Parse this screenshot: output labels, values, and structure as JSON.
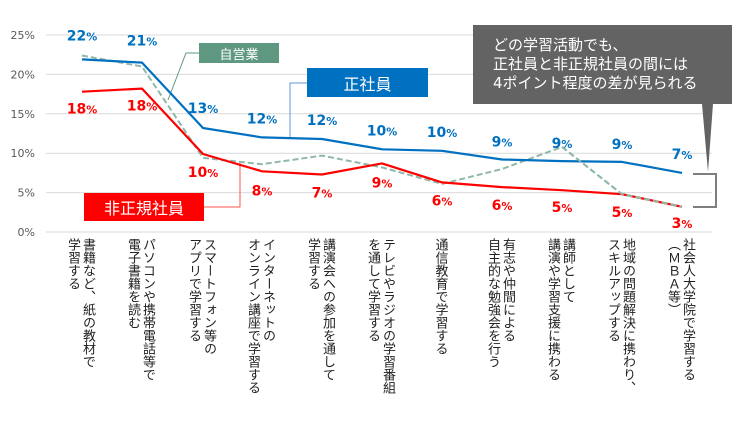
{
  "chart_data": {
    "type": "line",
    "title": "",
    "xlabel": "",
    "ylabel": "",
    "ylim": [
      0,
      25
    ],
    "yticks": [
      "0%",
      "5%",
      "10%",
      "15%",
      "20%",
      "25%"
    ],
    "ytick_values": [
      0,
      5,
      10,
      15,
      20,
      25
    ],
    "grid": true,
    "categories": [
      "書籍など、紙の教材で\n学習する",
      "パソコンや携帯電話等で\n電子書籍を読む",
      "スマートフォン等の\nアプリで学習する",
      "インターネットの\nオンライン講座で学習する",
      "講演会への参加を通して\n学習する",
      "テレビやラジオの学習番組\nを通して学習する",
      "通信教育で学習する",
      "有志や仲間による\n自主的な勉強会を行う",
      "講師として\n講演や学習支援に携わる",
      "地域の問題解決に携わり、\nスキルアップする",
      "社会人大学院で学習する\n（ＭＢＡ等）"
    ],
    "series": [
      {
        "name": "正社員",
        "color": "#0070c0",
        "dash": false,
        "values": [
          21.9,
          21.5,
          13.2,
          12.0,
          11.8,
          10.5,
          10.3,
          9.2,
          9.0,
          8.9,
          7.5
        ],
        "labels": [
          "22",
          "21",
          "13",
          "12",
          "12",
          "10",
          "10",
          "9",
          "9",
          "9",
          "7"
        ]
      },
      {
        "name": "非正規社員",
        "color": "#ff0000",
        "dash": false,
        "values": [
          17.8,
          18.2,
          9.9,
          7.7,
          7.3,
          8.7,
          6.3,
          5.7,
          5.3,
          4.8,
          3.2
        ],
        "labels": [
          "18",
          "18",
          "10",
          "8",
          "7",
          "9",
          "6",
          "6",
          "5",
          "5",
          "3"
        ]
      },
      {
        "name": "自営業",
        "color": "#8fb8a8",
        "dash": true,
        "values": [
          22.4,
          21.0,
          9.4,
          8.6,
          9.7,
          8.2,
          6.1,
          8.0,
          10.8,
          4.8,
          3.2
        ],
        "labels": []
      }
    ],
    "pct_suffix": "%",
    "legend_boxes": [
      {
        "name": "自営業",
        "color": "#5e9880"
      },
      {
        "name": "正社員",
        "color": "#0070c0"
      },
      {
        "name": "非正規社員",
        "color": "#ff0000"
      }
    ],
    "annotation": {
      "lines": [
        "どの学習活動でも、",
        "正社員と非正規社員の間には",
        "4ポイント程度の差が見られる"
      ],
      "color": "#636363"
    }
  }
}
